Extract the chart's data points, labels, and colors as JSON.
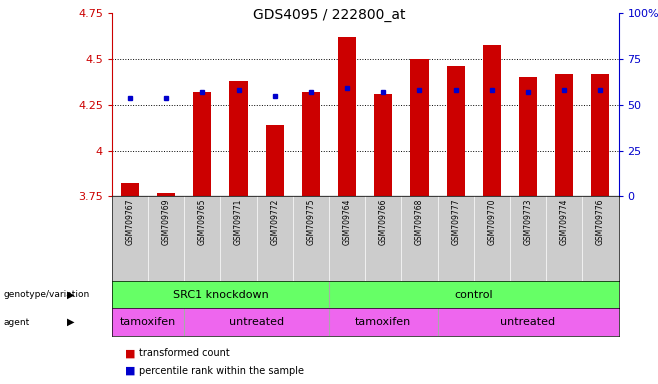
{
  "title": "GDS4095 / 222800_at",
  "samples": [
    "GSM709767",
    "GSM709769",
    "GSM709765",
    "GSM709771",
    "GSM709772",
    "GSM709775",
    "GSM709764",
    "GSM709766",
    "GSM709768",
    "GSM709777",
    "GSM709770",
    "GSM709773",
    "GSM709774",
    "GSM709776"
  ],
  "red_values": [
    3.82,
    3.77,
    4.32,
    4.38,
    4.14,
    4.32,
    4.62,
    4.31,
    4.5,
    4.46,
    4.58,
    4.4,
    4.42,
    4.42
  ],
  "blue_values": [
    4.29,
    4.29,
    4.32,
    4.33,
    4.3,
    4.32,
    4.34,
    4.32,
    4.33,
    4.33,
    4.33,
    4.32,
    4.33,
    4.33
  ],
  "ymin": 3.75,
  "ymax": 4.75,
  "yticks": [
    3.75,
    4.0,
    4.25,
    4.5,
    4.75
  ],
  "ytick_labels": [
    "3.75",
    "4",
    "4.25",
    "4.5",
    "4.75"
  ],
  "y2ticks": [
    0.0,
    0.25,
    0.5,
    0.75,
    1.0
  ],
  "y2labels": [
    "0",
    "25",
    "50",
    "75",
    "100%"
  ],
  "bar_color": "#cc0000",
  "dot_color": "#0000cc",
  "genotype_color": "#66ff66",
  "agent_tamoxifen_color": "#cc44cc",
  "agent_untreated_color": "#ee66ee",
  "tick_label_bg": "#cccccc",
  "axis_color_left": "#cc0000",
  "axis_color_right": "#0000cc",
  "genotype_groups": [
    {
      "label": "SRC1 knockdown",
      "start": 0,
      "end": 6
    },
    {
      "label": "control",
      "start": 6,
      "end": 14
    }
  ],
  "agent_groups": [
    {
      "label": "tamoxifen",
      "start": 0,
      "end": 2
    },
    {
      "label": "untreated",
      "start": 2,
      "end": 6
    },
    {
      "label": "tamoxifen",
      "start": 6,
      "end": 9
    },
    {
      "label": "untreated",
      "start": 9,
      "end": 14
    }
  ]
}
